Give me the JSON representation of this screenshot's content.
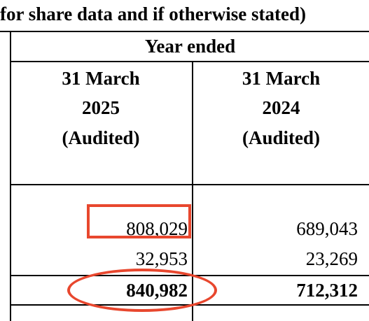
{
  "header": {
    "caption": "for share data and if otherwise stated)",
    "group_label": "Year ended"
  },
  "columns": [
    {
      "date": "31 March",
      "year": "2025",
      "status": "(Audited)"
    },
    {
      "date": "31 March",
      "year": "2024",
      "status": "(Audited)"
    }
  ],
  "rows": [
    {
      "values": [
        "808,029",
        "689,043"
      ]
    },
    {
      "values": [
        "32,953",
        "23,269"
      ]
    }
  ],
  "total": {
    "values": [
      "840,982",
      "712,312"
    ]
  },
  "highlight_color": "#e8472e"
}
